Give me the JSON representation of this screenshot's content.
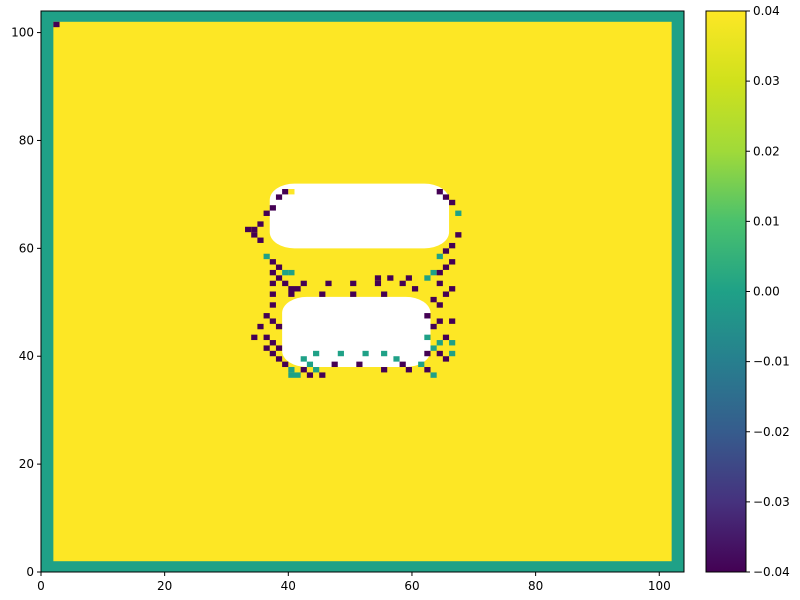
{
  "chart_data": {
    "type": "heatmap",
    "title": "",
    "xlabel": "",
    "ylabel": "",
    "xlim": [
      0,
      104
    ],
    "ylim": [
      0,
      104
    ],
    "xticks": [
      "0",
      "20",
      "40",
      "60",
      "80",
      "100"
    ],
    "yticks": [
      "0",
      "20",
      "40",
      "60",
      "80",
      "100"
    ],
    "colorbar": {
      "colormap": "viridis",
      "vmin": -0.04,
      "vmax": 0.04,
      "ticks": [
        "−0.04",
        "−0.03",
        "−0.02",
        "−0.01",
        "0.00",
        "0.01",
        "0.02",
        "0.03",
        "0.04"
      ]
    },
    "grid": false,
    "legend": "none",
    "fields": {
      "border_value": 0.0,
      "interior_value": 0.04,
      "masked_region": "NaN (white)"
    },
    "masked_blobs": [
      {
        "x": [
          37,
          66
        ],
        "y": [
          60,
          72
        ]
      },
      {
        "x": [
          39,
          63
        ],
        "y": [
          38,
          51
        ]
      }
    ],
    "edge_cells": [
      {
        "x": 2,
        "y": 101,
        "value": -0.04
      },
      {
        "x": 33,
        "y": 63,
        "value": -0.04
      },
      {
        "x": 34,
        "y": 63,
        "value": -0.04
      },
      {
        "x": 34,
        "y": 62,
        "value": -0.04
      },
      {
        "x": 35,
        "y": 64,
        "value": -0.04
      },
      {
        "x": 35,
        "y": 61,
        "value": -0.04
      },
      {
        "x": 36,
        "y": 66,
        "value": -0.04
      },
      {
        "x": 37,
        "y": 67,
        "value": -0.04
      },
      {
        "x": 38,
        "y": 69,
        "value": -0.04
      },
      {
        "x": 39,
        "y": 70,
        "value": -0.04
      },
      {
        "x": 40,
        "y": 70,
        "value": 0.04
      },
      {
        "x": 36,
        "y": 58,
        "value": 0.0
      },
      {
        "x": 37,
        "y": 57,
        "value": -0.04
      },
      {
        "x": 38,
        "y": 56,
        "value": -0.04
      },
      {
        "x": 39,
        "y": 55,
        "value": 0.0
      },
      {
        "x": 40,
        "y": 55,
        "value": 0.0
      },
      {
        "x": 37,
        "y": 55,
        "value": -0.04
      },
      {
        "x": 38,
        "y": 54,
        "value": -0.04
      },
      {
        "x": 37,
        "y": 53,
        "value": -0.04
      },
      {
        "x": 39,
        "y": 53,
        "value": -0.04
      },
      {
        "x": 40,
        "y": 52,
        "value": -0.04
      },
      {
        "x": 41,
        "y": 52,
        "value": -0.04
      },
      {
        "x": 40,
        "y": 51,
        "value": -0.04
      },
      {
        "x": 37,
        "y": 51,
        "value": -0.04
      },
      {
        "x": 37,
        "y": 49,
        "value": -0.04
      },
      {
        "x": 36,
        "y": 47,
        "value": -0.04
      },
      {
        "x": 37,
        "y": 46,
        "value": -0.04
      },
      {
        "x": 38,
        "y": 45,
        "value": -0.04
      },
      {
        "x": 35,
        "y": 45,
        "value": -0.04
      },
      {
        "x": 34,
        "y": 43,
        "value": -0.04
      },
      {
        "x": 36,
        "y": 43,
        "value": -0.04
      },
      {
        "x": 37,
        "y": 42,
        "value": -0.04
      },
      {
        "x": 38,
        "y": 41,
        "value": -0.04
      },
      {
        "x": 36,
        "y": 41,
        "value": -0.04
      },
      {
        "x": 37,
        "y": 40,
        "value": -0.04
      },
      {
        "x": 38,
        "y": 39,
        "value": -0.04
      },
      {
        "x": 39,
        "y": 38,
        "value": -0.04
      },
      {
        "x": 40,
        "y": 37,
        "value": 0.0
      },
      {
        "x": 41,
        "y": 36,
        "value": 0.0
      },
      {
        "x": 40,
        "y": 36,
        "value": 0.0
      },
      {
        "x": 42,
        "y": 37,
        "value": -0.04
      },
      {
        "x": 43,
        "y": 38,
        "value": 0.0
      },
      {
        "x": 44,
        "y": 37,
        "value": 0.0
      },
      {
        "x": 45,
        "y": 36,
        "value": -0.04
      },
      {
        "x": 43,
        "y": 36,
        "value": -0.04
      },
      {
        "x": 42,
        "y": 39,
        "value": 0.0
      },
      {
        "x": 44,
        "y": 40,
        "value": 0.0
      },
      {
        "x": 48,
        "y": 40,
        "value": 0.0
      },
      {
        "x": 52,
        "y": 40,
        "value": 0.0
      },
      {
        "x": 55,
        "y": 40,
        "value": 0.0
      },
      {
        "x": 47,
        "y": 38,
        "value": -0.04
      },
      {
        "x": 51,
        "y": 38,
        "value": -0.04
      },
      {
        "x": 55,
        "y": 37,
        "value": -0.04
      },
      {
        "x": 57,
        "y": 39,
        "value": 0.0
      },
      {
        "x": 58,
        "y": 38,
        "value": -0.04
      },
      {
        "x": 59,
        "y": 37,
        "value": -0.04
      },
      {
        "x": 61,
        "y": 38,
        "value": 0.0
      },
      {
        "x": 62,
        "y": 37,
        "value": -0.04
      },
      {
        "x": 63,
        "y": 36,
        "value": 0.0
      },
      {
        "x": 62,
        "y": 40,
        "value": -0.04
      },
      {
        "x": 63,
        "y": 41,
        "value": 0.0
      },
      {
        "x": 64,
        "y": 40,
        "value": -0.04
      },
      {
        "x": 65,
        "y": 39,
        "value": -0.04
      },
      {
        "x": 66,
        "y": 40,
        "value": 0.0
      },
      {
        "x": 62,
        "y": 43,
        "value": 0.0
      },
      {
        "x": 64,
        "y": 42,
        "value": 0.0
      },
      {
        "x": 65,
        "y": 43,
        "value": -0.04
      },
      {
        "x": 66,
        "y": 42,
        "value": 0.0
      },
      {
        "x": 63,
        "y": 45,
        "value": -0.04
      },
      {
        "x": 64,
        "y": 46,
        "value": -0.04
      },
      {
        "x": 62,
        "y": 47,
        "value": -0.04
      },
      {
        "x": 66,
        "y": 46,
        "value": -0.04
      },
      {
        "x": 64,
        "y": 49,
        "value": -0.04
      },
      {
        "x": 63,
        "y": 50,
        "value": -0.04
      },
      {
        "x": 65,
        "y": 51,
        "value": -0.04
      },
      {
        "x": 66,
        "y": 52,
        "value": -0.04
      },
      {
        "x": 64,
        "y": 53,
        "value": -0.04
      },
      {
        "x": 62,
        "y": 54,
        "value": 0.0
      },
      {
        "x": 63,
        "y": 55,
        "value": 0.0
      },
      {
        "x": 64,
        "y": 55,
        "value": -0.04
      },
      {
        "x": 65,
        "y": 56,
        "value": -0.04
      },
      {
        "x": 66,
        "y": 57,
        "value": -0.04
      },
      {
        "x": 64,
        "y": 58,
        "value": 0.0
      },
      {
        "x": 65,
        "y": 59,
        "value": -0.04
      },
      {
        "x": 66,
        "y": 60,
        "value": -0.04
      },
      {
        "x": 67,
        "y": 62,
        "value": -0.04
      },
      {
        "x": 67,
        "y": 66,
        "value": 0.0
      },
      {
        "x": 66,
        "y": 68,
        "value": -0.04
      },
      {
        "x": 65,
        "y": 69,
        "value": -0.04
      },
      {
        "x": 64,
        "y": 70,
        "value": -0.04
      },
      {
        "x": 42,
        "y": 53,
        "value": -0.04
      },
      {
        "x": 46,
        "y": 53,
        "value": -0.04
      },
      {
        "x": 50,
        "y": 53,
        "value": -0.04
      },
      {
        "x": 54,
        "y": 53,
        "value": -0.04
      },
      {
        "x": 58,
        "y": 53,
        "value": -0.04
      },
      {
        "x": 60,
        "y": 52,
        "value": -0.04
      },
      {
        "x": 54,
        "y": 54,
        "value": -0.04
      },
      {
        "x": 56,
        "y": 54,
        "value": -0.04
      },
      {
        "x": 59,
        "y": 54,
        "value": -0.04
      },
      {
        "x": 45,
        "y": 51,
        "value": -0.04
      },
      {
        "x": 50,
        "y": 51,
        "value": -0.04
      },
      {
        "x": 55,
        "y": 51,
        "value": -0.04
      }
    ]
  }
}
